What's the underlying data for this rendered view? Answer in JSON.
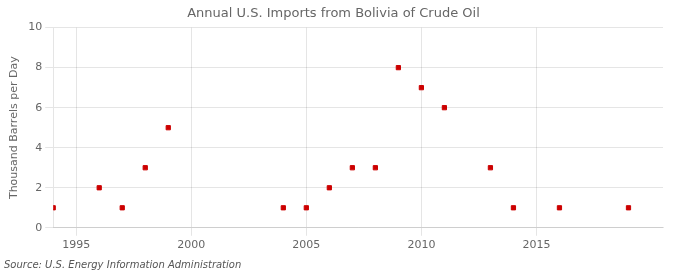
{
  "chart_data": {
    "type": "scatter",
    "title": "Annual U.S. Imports from Bolivia of Crude Oil",
    "ylabel": "Thousand Barrels per Day",
    "source": "Source: U.S. Energy Information Administration",
    "x": [
      1994,
      1996,
      1997,
      1998,
      1999,
      2004,
      2005,
      2006,
      2007,
      2008,
      2009,
      2010,
      2011,
      2013,
      2014,
      2016,
      2019
    ],
    "values": [
      1,
      2,
      1,
      3,
      5,
      1,
      1,
      2,
      3,
      3,
      8,
      7,
      6,
      3,
      1,
      1,
      1
    ],
    "color": "#cc0000",
    "marker": "square",
    "xlim": [
      1994.0,
      2020.5
    ],
    "ylim": [
      0,
      10
    ],
    "xticks": [
      1995,
      2000,
      2005,
      2010,
      2015
    ],
    "yticks": [
      0,
      2,
      4,
      6,
      8,
      10
    ],
    "grid": true
  }
}
